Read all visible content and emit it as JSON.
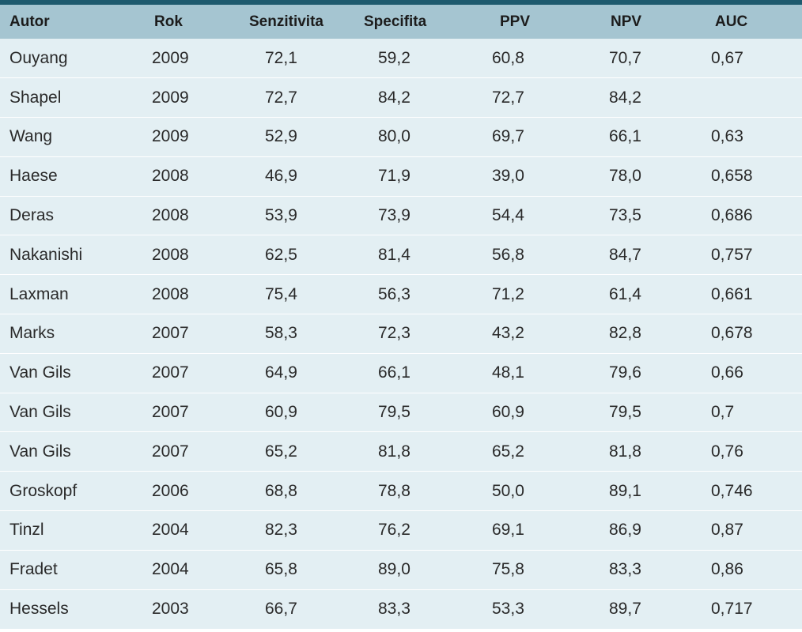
{
  "table": {
    "headers": [
      "Autor",
      "Rok",
      "Senzitivita",
      "Specifita",
      "PPV",
      "NPV",
      "AUC"
    ],
    "rows": [
      [
        "Ouyang",
        "2009",
        "72,1",
        "59,2",
        "60,8",
        "70,7",
        "0,67"
      ],
      [
        "Shapel",
        "2009",
        "72,7",
        "84,2",
        "72,7",
        "84,2",
        ""
      ],
      [
        "Wang",
        "2009",
        "52,9",
        "80,0",
        "69,7",
        "66,1",
        "0,63"
      ],
      [
        "Haese",
        "2008",
        "46,9",
        "71,9",
        "39,0",
        "78,0",
        "0,658"
      ],
      [
        "Deras",
        "2008",
        "53,9",
        "73,9",
        "54,4",
        "73,5",
        "0,686"
      ],
      [
        "Nakanishi",
        "2008",
        "62,5",
        "81,4",
        "56,8",
        "84,7",
        "0,757"
      ],
      [
        "Laxman",
        "2008",
        "75,4",
        "56,3",
        "71,2",
        "61,4",
        "0,661"
      ],
      [
        "Marks",
        "2007",
        "58,3",
        "72,3",
        "43,2",
        "82,8",
        "0,678"
      ],
      [
        "Van Gils",
        "2007",
        "64,9",
        "66,1",
        "48,1",
        "79,6",
        "0,66"
      ],
      [
        "Van Gils",
        "2007",
        "60,9",
        "79,5",
        "60,9",
        "79,5",
        "0,7"
      ],
      [
        "Van Gils",
        "2007",
        "65,2",
        "81,8",
        "65,2",
        "81,8",
        "0,76"
      ],
      [
        "Groskopf",
        "2006",
        "68,8",
        "78,8",
        "50,0",
        "89,1",
        "0,746"
      ],
      [
        "Tinzl",
        "2004",
        "82,3",
        "76,2",
        "69,1",
        "86,9",
        "0,87"
      ],
      [
        "Fradet",
        "2004",
        "65,8",
        "89,0",
        "75,8",
        "83,3",
        "0,86"
      ],
      [
        "Hessels",
        "2003",
        "66,7",
        "83,3",
        "53,3",
        "89,7",
        "0,717"
      ]
    ]
  },
  "colors": {
    "accent_rule": "#1e5a6e",
    "header_bg": "#a5c5d1",
    "row_bg": "#e3eff3",
    "row_separator": "#ffffff"
  }
}
